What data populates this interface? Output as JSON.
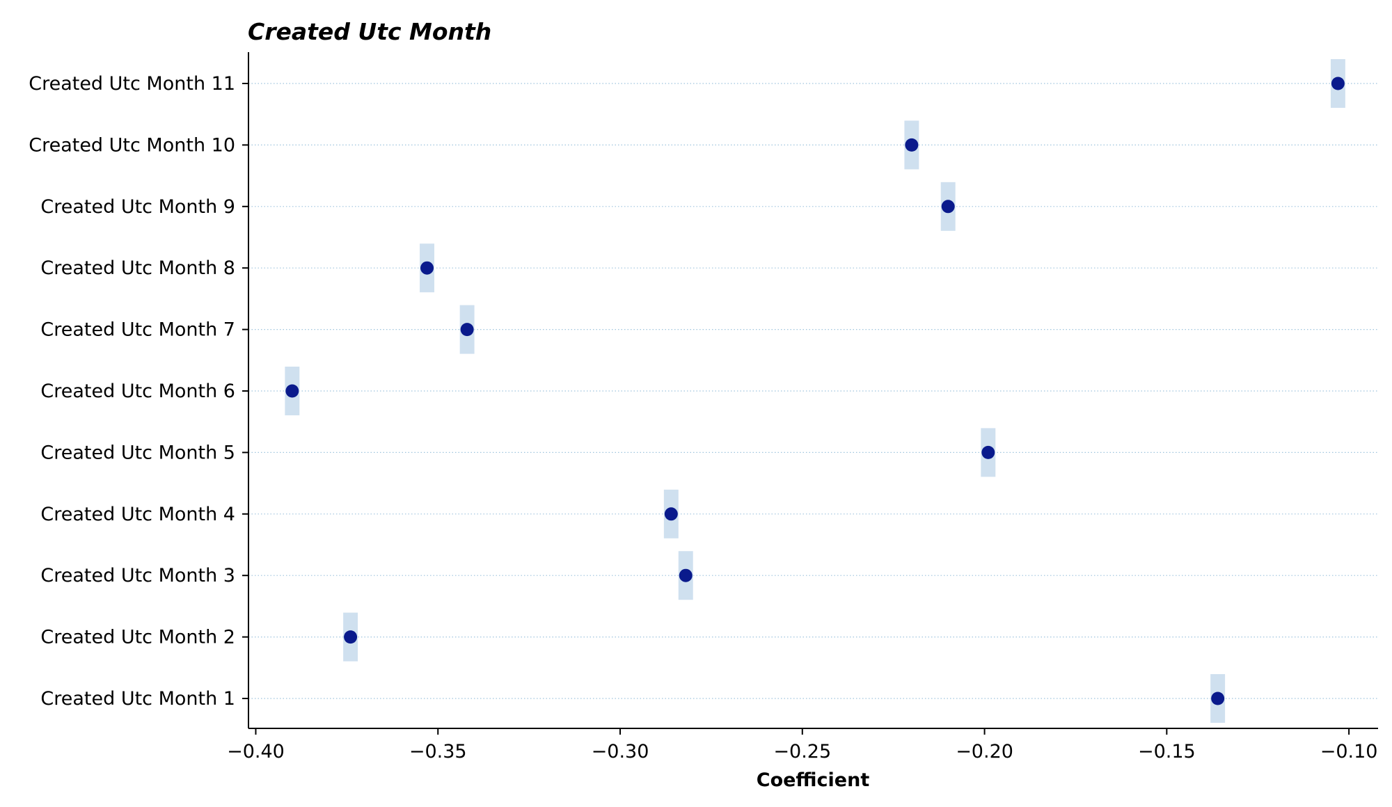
{
  "chart_data": {
    "type": "scatter",
    "title": "Created Utc Month",
    "xlabel": "Coefficient",
    "ylabel": "",
    "xlim": [
      -0.402,
      -0.092
    ],
    "xticks": [
      -0.4,
      -0.35,
      -0.3,
      -0.25,
      -0.2,
      -0.15,
      -0.1
    ],
    "xtick_labels": [
      "−0.40",
      "−0.35",
      "−0.30",
      "−0.25",
      "−0.20",
      "−0.15",
      "−0.10"
    ],
    "categories": [
      "Created Utc Month 1",
      "Created Utc Month 2",
      "Created Utc Month 3",
      "Created Utc Month 4",
      "Created Utc Month 5",
      "Created Utc Month 6",
      "Created Utc Month 7",
      "Created Utc Month 8",
      "Created Utc Month 9",
      "Created Utc Month 10",
      "Created Utc Month 11"
    ],
    "values": [
      -0.136,
      -0.374,
      -0.282,
      -0.286,
      -0.199,
      -0.39,
      -0.342,
      -0.353,
      -0.21,
      -0.22,
      -0.103
    ],
    "ci_low": [
      -0.138,
      -0.376,
      -0.284,
      -0.288,
      -0.201,
      -0.392,
      -0.344,
      -0.355,
      -0.212,
      -0.222,
      -0.105
    ],
    "ci_high": [
      -0.134,
      -0.372,
      -0.28,
      -0.284,
      -0.197,
      -0.388,
      -0.34,
      -0.351,
      -0.208,
      -0.218,
      -0.101
    ],
    "grid": "horizontal dotted",
    "colors": {
      "point": "#0a1a8c",
      "interval": "#cfe0ef",
      "grid": "#9ec3dd"
    }
  }
}
